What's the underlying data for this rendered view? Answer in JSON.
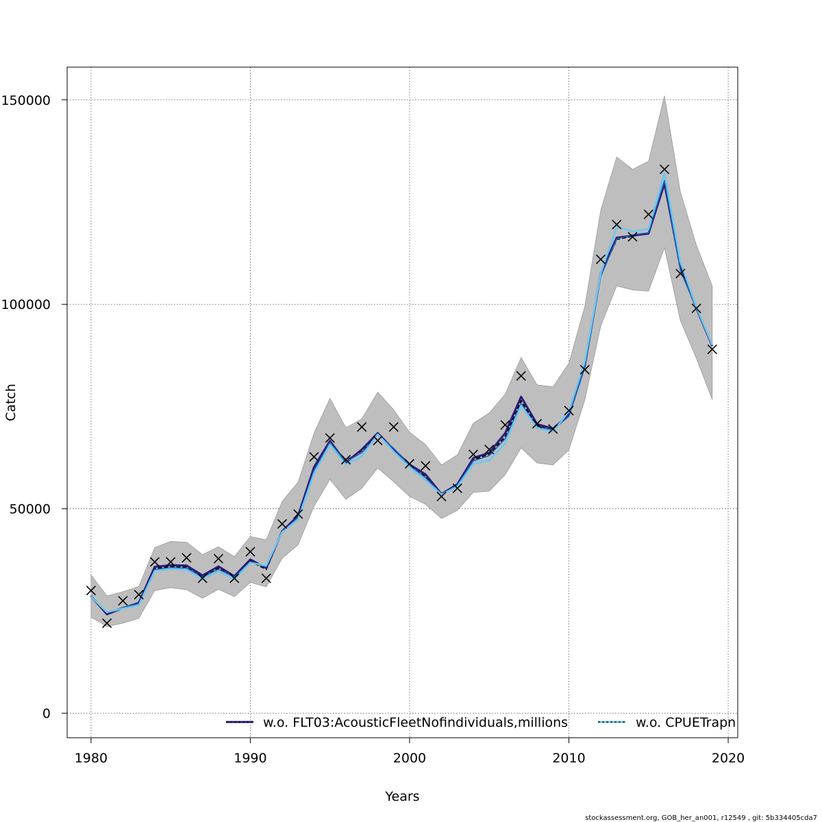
{
  "chart_data": {
    "type": "line",
    "xlabel": "Years",
    "ylabel": "Catch",
    "xlim": [
      1978.5,
      2020.6
    ],
    "ylim": [
      -6000,
      158000
    ],
    "x_ticks": [
      1980,
      1990,
      2000,
      2010,
      2020
    ],
    "x_tick_labels": [
      "1980",
      "1990",
      "2000",
      "2010",
      "2020"
    ],
    "y_ticks": [
      0,
      50000,
      100000,
      150000
    ],
    "y_tick_labels": [
      "0",
      "50000",
      "100000",
      "150000"
    ],
    "grid": true,
    "legend_placement": "bottom",
    "x": [
      1980,
      1981,
      1982,
      1983,
      1984,
      1985,
      1986,
      1987,
      1988,
      1989,
      1990,
      1991,
      1992,
      1993,
      1994,
      1995,
      1996,
      1997,
      1998,
      1999,
      2000,
      2001,
      2002,
      2003,
      2004,
      2005,
      2006,
      2007,
      2008,
      2009,
      2010,
      2011,
      2012,
      2013,
      2014,
      2015,
      2016,
      2017,
      2018,
      2019
    ],
    "band": {
      "color": "#bebebe",
      "upper": [
        33800,
        28700,
        29700,
        31000,
        40500,
        42000,
        41800,
        38800,
        40700,
        38300,
        43200,
        42400,
        51800,
        56500,
        68500,
        77000,
        69800,
        72000,
        78500,
        74200,
        68700,
        65700,
        60700,
        63200,
        70900,
        73400,
        78000,
        87000,
        80300,
        79800,
        85600,
        99500,
        123000,
        136000,
        133000,
        135000,
        151000,
        127500,
        114500,
        104500
      ],
      "lower": [
        23500,
        21200,
        22000,
        23200,
        30000,
        30700,
        30200,
        28100,
        30300,
        28500,
        32000,
        30900,
        37900,
        41200,
        50600,
        57200,
        52300,
        55000,
        60000,
        56600,
        53000,
        51100,
        47600,
        49600,
        54000,
        54300,
        58300,
        64900,
        61200,
        60700,
        64400,
        76600,
        94700,
        104500,
        103500,
        103200,
        113800,
        96000,
        86800,
        76700
      ]
    },
    "observed": {
      "marker": "x",
      "values": [
        30000,
        22000,
        27500,
        29000,
        37000,
        37000,
        38000,
        33000,
        37800,
        33000,
        39500,
        33000,
        46300,
        48700,
        62700,
        67300,
        62000,
        70000,
        66700,
        70000,
        61000,
        60500,
        53000,
        55000,
        63300,
        64500,
        70500,
        82500,
        70800,
        69500,
        74000,
        84000,
        111000,
        119500,
        116500,
        122000,
        133000,
        107500,
        99000,
        89000
      ]
    },
    "series": [
      {
        "name": "",
        "color": "#000000",
        "width": 2.2,
        "dash": "6,3",
        "values": [
          28700,
          24400,
          25800,
          26900,
          35400,
          35800,
          35700,
          33500,
          35500,
          33300,
          37200,
          35200,
          44400,
          48100,
          59800,
          66400,
          61700,
          64200,
          68300,
          64600,
          60800,
          57900,
          53500,
          56000,
          62000,
          63400,
          67600,
          76400,
          70200,
          69400,
          72800,
          84800,
          107200,
          115900,
          116700,
          117300,
          129700,
          108600,
          99100,
          90100
        ]
      },
      {
        "name": "w.o. FLT03:AcousticFleetNofindividuals,millions",
        "color": "#2b1b7a",
        "width": 3,
        "dash": "",
        "values": [
          28600,
          24200,
          25700,
          27000,
          35800,
          36200,
          36100,
          33700,
          35900,
          33500,
          37600,
          35500,
          44500,
          48300,
          60200,
          66600,
          61300,
          64500,
          68500,
          64500,
          60800,
          58400,
          53600,
          56000,
          62400,
          63700,
          68500,
          77400,
          70700,
          69600,
          73000,
          85000,
          107600,
          116300,
          116800,
          117300,
          129500,
          109200,
          99100,
          89800
        ]
      },
      {
        "name": "",
        "color": "#1e63b8",
        "width": 1.6,
        "dash": "",
        "values": [
          28800,
          24500,
          25900,
          26800,
          35100,
          35600,
          35500,
          33300,
          35200,
          33300,
          37000,
          35800,
          44200,
          47900,
          59400,
          66200,
          61500,
          63700,
          68000,
          64800,
          60600,
          57600,
          53500,
          55800,
          61700,
          63000,
          67100,
          75800,
          70000,
          69300,
          72600,
          84600,
          106800,
          116000,
          117000,
          117500,
          130300,
          108300,
          99000,
          90200
        ]
      },
      {
        "name": "w.o. CPUETrapn",
        "color": "#6fc7ec",
        "width": 2.6,
        "dash": "",
        "values": [
          28500,
          24700,
          25600,
          26400,
          34800,
          35300,
          35100,
          32800,
          34700,
          32800,
          36800,
          36100,
          44300,
          47400,
          58600,
          65700,
          60800,
          62800,
          68200,
          64000,
          60200,
          57000,
          53500,
          55400,
          61000,
          61800,
          66000,
          75200,
          69800,
          68800,
          73800,
          86000,
          107600,
          119000,
          117800,
          118400,
          132200,
          110300,
          99400,
          90000
        ]
      }
    ]
  },
  "footer": "stockassessment.org, GOB_her_an001, r12549 , git: 5b334405cda7"
}
